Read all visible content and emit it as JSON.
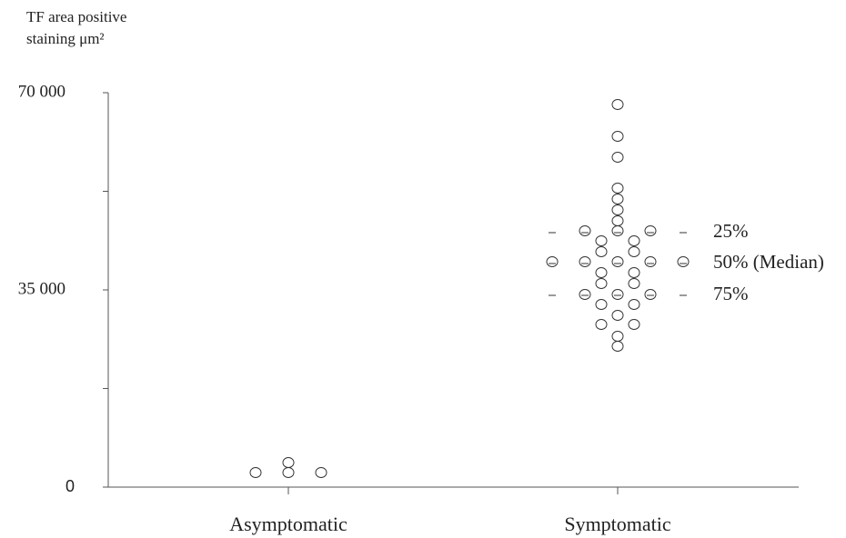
{
  "chart_data": {
    "type": "scatter",
    "y_label": [
      "TF area positive",
      "staining μm²"
    ],
    "categories": [
      "Asymptomatic",
      "Symptomatic"
    ],
    "values": [
      [
        2580,
        2580,
        2580,
        4360
      ],
      [
        67900,
        62260,
        58550,
        53070,
        51130,
        49200,
        47260,
        45490,
        45490,
        45490,
        43710,
        43710,
        41780,
        41780,
        40000,
        40000,
        40000,
        40000,
        40000,
        38070,
        38070,
        36130,
        36130,
        34200,
        34200,
        34200,
        32420,
        32420,
        30490,
        28870,
        28870,
        26780,
        25000
      ]
    ],
    "color": "#333333",
    "ylim": [
      0,
      70000
    ],
    "yticks": [
      {
        "value": 0,
        "label": "0"
      },
      {
        "value": 35000,
        "label": "35 000"
      },
      {
        "value": 70000,
        "label": "70 000"
      }
    ],
    "yminor": [
      17500,
      52500
    ],
    "quartiles": [
      {
        "label": "25%",
        "value": 45160
      },
      {
        "label": "50% (Median)",
        "value": 39680
      },
      {
        "label": "75%",
        "value": 34030
      }
    ]
  }
}
